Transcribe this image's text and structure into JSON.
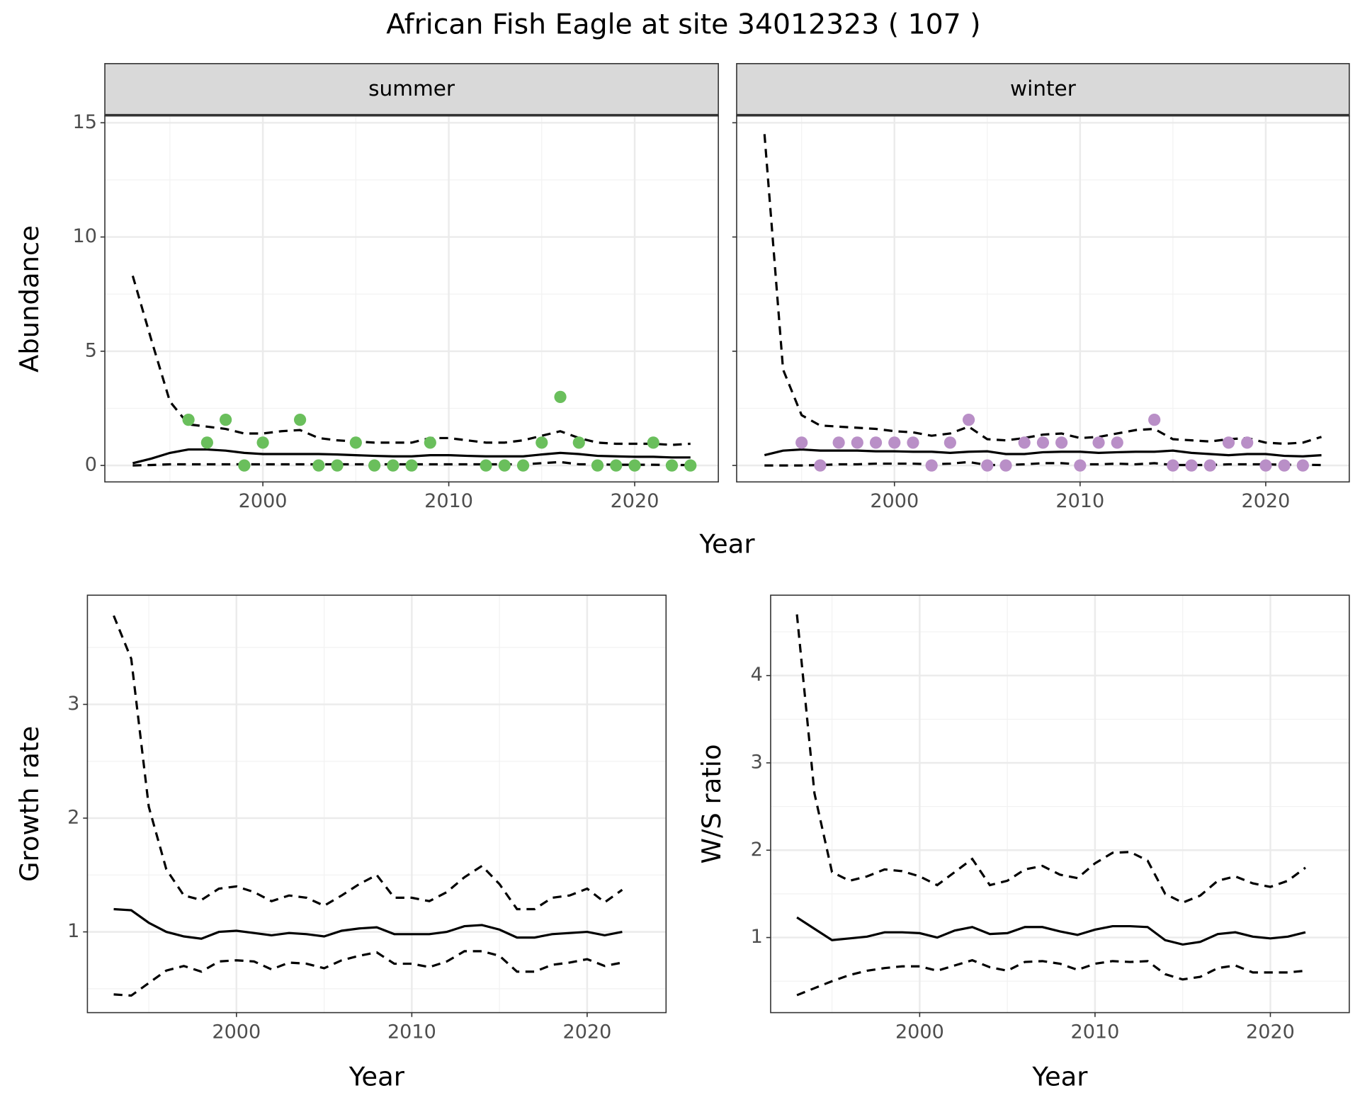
{
  "title": "African Fish Eagle at site 34012323 ( 107 )",
  "chart_data": [
    {
      "type": "line",
      "facet": "summer",
      "ylabel": "Abundance",
      "xlabel": "Year",
      "xlim": [
        1991.5,
        2024.5
      ],
      "xticks": [
        2000,
        2010,
        2020
      ],
      "xminor": [
        1995,
        2005,
        2015
      ],
      "ylim": [
        -0.72,
        15.3
      ],
      "yticks": [
        0,
        5,
        10,
        15
      ],
      "yminor": [
        2.5,
        7.5,
        12.5
      ],
      "ytick_labels": true,
      "x": [
        1993,
        1994,
        1995,
        1996,
        1997,
        1998,
        1999,
        2000,
        2001,
        2002,
        2003,
        2004,
        2005,
        2006,
        2007,
        2008,
        2009,
        2010,
        2011,
        2012,
        2013,
        2014,
        2015,
        2016,
        2017,
        2018,
        2019,
        2020,
        2021,
        2022,
        2023
      ],
      "series": [
        {
          "color": "#000000",
          "dashed": false,
          "values": [
            0.1,
            0.3,
            0.55,
            0.7,
            0.7,
            0.65,
            0.55,
            0.5,
            0.5,
            0.5,
            0.5,
            0.48,
            0.45,
            0.42,
            0.4,
            0.4,
            0.45,
            0.45,
            0.42,
            0.4,
            0.4,
            0.4,
            0.48,
            0.55,
            0.5,
            0.42,
            0.4,
            0.38,
            0.38,
            0.35,
            0.35
          ]
        },
        {
          "color": "#000000",
          "dashed": true,
          "values": [
            8.3,
            5.5,
            2.8,
            1.8,
            1.7,
            1.6,
            1.4,
            1.4,
            1.5,
            1.55,
            1.2,
            1.1,
            1.05,
            1.0,
            1.0,
            1.0,
            1.2,
            1.2,
            1.1,
            1.0,
            1.0,
            1.1,
            1.3,
            1.5,
            1.2,
            1.0,
            0.95,
            0.95,
            0.95,
            0.9,
            0.95
          ]
        },
        {
          "color": "#000000",
          "dashed": true,
          "values": [
            0.0,
            0.02,
            0.05,
            0.05,
            0.05,
            0.05,
            0.05,
            0.05,
            0.05,
            0.05,
            0.05,
            0.05,
            0.05,
            0.05,
            0.05,
            0.05,
            0.05,
            0.05,
            0.05,
            0.05,
            0.05,
            0.05,
            0.1,
            0.15,
            0.05,
            0.05,
            0.03,
            0.03,
            0.03,
            0.02,
            0.02
          ]
        }
      ],
      "points": {
        "color": "#6abf5c",
        "x": [
          1996,
          1997,
          1998,
          1999,
          2000,
          2002,
          2003,
          2004,
          2005,
          2006,
          2007,
          2008,
          2009,
          2012,
          2013,
          2014,
          2015,
          2016,
          2017,
          2018,
          2019,
          2020,
          2021,
          2022,
          2023
        ],
        "values": [
          2,
          1,
          2,
          0,
          1,
          2,
          0,
          0,
          1,
          0,
          0,
          0,
          1,
          0,
          0,
          0,
          1,
          3,
          1,
          0,
          0,
          0,
          1,
          0,
          0
        ]
      }
    },
    {
      "type": "line",
      "facet": "winter",
      "xlim": [
        1991.5,
        2024.5
      ],
      "xticks": [
        2000,
        2010,
        2020
      ],
      "xminor": [
        1995,
        2005,
        2015
      ],
      "ylim": [
        -0.72,
        15.3
      ],
      "yticks": [
        0,
        5,
        10,
        15
      ],
      "yminor": [
        2.5,
        7.5,
        12.5
      ],
      "ytick_labels": false,
      "x": [
        1993,
        1994,
        1995,
        1996,
        1997,
        1998,
        1999,
        2000,
        2001,
        2002,
        2003,
        2004,
        2005,
        2006,
        2007,
        2008,
        2009,
        2010,
        2011,
        2012,
        2013,
        2014,
        2015,
        2016,
        2017,
        2018,
        2019,
        2020,
        2021,
        2022,
        2023
      ],
      "series": [
        {
          "color": "#000000",
          "dashed": false,
          "values": [
            0.45,
            0.65,
            0.7,
            0.65,
            0.65,
            0.65,
            0.62,
            0.62,
            0.6,
            0.6,
            0.55,
            0.6,
            0.62,
            0.5,
            0.5,
            0.58,
            0.6,
            0.6,
            0.55,
            0.58,
            0.6,
            0.6,
            0.65,
            0.55,
            0.5,
            0.45,
            0.5,
            0.5,
            0.42,
            0.4,
            0.45
          ]
        },
        {
          "color": "#000000",
          "dashed": true,
          "values": [
            14.5,
            4.2,
            2.2,
            1.75,
            1.7,
            1.65,
            1.6,
            1.5,
            1.45,
            1.3,
            1.4,
            1.7,
            1.15,
            1.1,
            1.2,
            1.35,
            1.4,
            1.2,
            1.25,
            1.4,
            1.55,
            1.6,
            1.15,
            1.1,
            1.05,
            1.15,
            1.2,
            1.0,
            0.95,
            1.0,
            1.25
          ]
        },
        {
          "color": "#000000",
          "dashed": true,
          "values": [
            0,
            0,
            0,
            0.02,
            0.05,
            0.05,
            0.08,
            0.08,
            0.08,
            0.05,
            0.08,
            0.15,
            0.02,
            0.02,
            0.05,
            0.1,
            0.1,
            0.05,
            0.05,
            0.08,
            0.05,
            0.1,
            0.02,
            0.02,
            0.02,
            0.05,
            0.05,
            0.05,
            0.03,
            0.03,
            0.02
          ]
        }
      ],
      "points": {
        "color": "#b98fc7",
        "x": [
          1995,
          1996,
          1997,
          1998,
          1999,
          2000,
          2001,
          2002,
          2003,
          2004,
          2005,
          2006,
          2007,
          2008,
          2009,
          2010,
          2011,
          2012,
          2014,
          2015,
          2016,
          2017,
          2018,
          2019,
          2020,
          2021,
          2022
        ],
        "values": [
          1,
          0,
          1,
          1,
          1,
          1,
          1,
          0,
          1,
          2,
          0,
          0,
          1,
          1,
          1,
          0,
          1,
          1,
          2,
          0,
          0,
          0,
          1,
          1,
          0,
          0,
          0
        ]
      }
    },
    {
      "type": "line",
      "ylabel": "Growth rate",
      "xlabel": "Year",
      "xlim": [
        1991.5,
        2024.5
      ],
      "xticks": [
        2000,
        2010,
        2020
      ],
      "xminor": [
        1995,
        2005,
        2015
      ],
      "ylim": [
        0.29,
        3.96
      ],
      "yticks": [
        1,
        2,
        3
      ],
      "yminor": [
        0.5,
        1.5,
        2.5,
        3.5
      ],
      "ytick_labels": true,
      "x": [
        1993,
        1994,
        1995,
        1996,
        1997,
        1998,
        1999,
        2000,
        2001,
        2002,
        2003,
        2004,
        2005,
        2006,
        2007,
        2008,
        2009,
        2010,
        2011,
        2012,
        2013,
        2014,
        2015,
        2016,
        2017,
        2018,
        2019,
        2020,
        2021,
        2022
      ],
      "series": [
        {
          "color": "#000000",
          "dashed": false,
          "values": [
            1.2,
            1.19,
            1.08,
            1.0,
            0.96,
            0.94,
            1.0,
            1.01,
            0.99,
            0.97,
            0.99,
            0.98,
            0.96,
            1.01,
            1.03,
            1.04,
            0.98,
            0.98,
            0.98,
            1.0,
            1.05,
            1.06,
            1.02,
            0.95,
            0.95,
            0.98,
            0.99,
            1.0,
            0.97,
            1.0
          ]
        },
        {
          "color": "#000000",
          "dashed": true,
          "values": [
            3.78,
            3.4,
            2.1,
            1.55,
            1.32,
            1.28,
            1.38,
            1.4,
            1.35,
            1.27,
            1.32,
            1.3,
            1.23,
            1.32,
            1.42,
            1.5,
            1.3,
            1.3,
            1.27,
            1.35,
            1.48,
            1.58,
            1.42,
            1.2,
            1.2,
            1.3,
            1.32,
            1.38,
            1.26,
            1.37
          ]
        },
        {
          "color": "#000000",
          "dashed": true,
          "values": [
            0.45,
            0.44,
            0.55,
            0.66,
            0.7,
            0.65,
            0.74,
            0.75,
            0.74,
            0.67,
            0.73,
            0.72,
            0.68,
            0.75,
            0.79,
            0.82,
            0.72,
            0.72,
            0.69,
            0.74,
            0.83,
            0.83,
            0.79,
            0.65,
            0.65,
            0.71,
            0.73,
            0.76,
            0.7,
            0.73
          ]
        }
      ]
    },
    {
      "type": "line",
      "ylabel": "W/S ratio",
      "xlabel": "Year",
      "xlim": [
        1991.5,
        2024.5
      ],
      "xticks": [
        2000,
        2010,
        2020
      ],
      "xminor": [
        1995,
        2005,
        2015
      ],
      "ylim": [
        0.14,
        4.92
      ],
      "yticks": [
        1,
        2,
        3,
        4
      ],
      "yminor": [
        0.5,
        1.5,
        2.5,
        3.5,
        4.5
      ],
      "ytick_labels": true,
      "x": [
        1993,
        1994,
        1995,
        1996,
        1997,
        1998,
        1999,
        2000,
        2001,
        2002,
        2003,
        2004,
        2005,
        2006,
        2007,
        2008,
        2009,
        2010,
        2011,
        2012,
        2013,
        2014,
        2015,
        2016,
        2017,
        2018,
        2019,
        2020,
        2021,
        2022
      ],
      "series": [
        {
          "color": "#000000",
          "dashed": false,
          "values": [
            1.23,
            1.1,
            0.97,
            0.99,
            1.01,
            1.06,
            1.06,
            1.05,
            1.0,
            1.08,
            1.12,
            1.04,
            1.05,
            1.12,
            1.12,
            1.07,
            1.03,
            1.09,
            1.13,
            1.13,
            1.12,
            0.97,
            0.92,
            0.95,
            1.04,
            1.06,
            1.01,
            0.99,
            1.01,
            1.06
          ]
        },
        {
          "color": "#000000",
          "dashed": true,
          "values": [
            4.7,
            2.65,
            1.75,
            1.65,
            1.7,
            1.78,
            1.76,
            1.7,
            1.6,
            1.75,
            1.9,
            1.6,
            1.65,
            1.78,
            1.82,
            1.72,
            1.68,
            1.85,
            1.97,
            1.98,
            1.88,
            1.5,
            1.4,
            1.48,
            1.65,
            1.7,
            1.62,
            1.58,
            1.65,
            1.8
          ]
        },
        {
          "color": "#000000",
          "dashed": true,
          "values": [
            0.34,
            0.42,
            0.5,
            0.57,
            0.62,
            0.65,
            0.67,
            0.67,
            0.62,
            0.68,
            0.74,
            0.66,
            0.62,
            0.72,
            0.73,
            0.7,
            0.63,
            0.7,
            0.73,
            0.72,
            0.73,
            0.58,
            0.52,
            0.55,
            0.65,
            0.68,
            0.6,
            0.6,
            0.6,
            0.62
          ]
        }
      ]
    }
  ]
}
